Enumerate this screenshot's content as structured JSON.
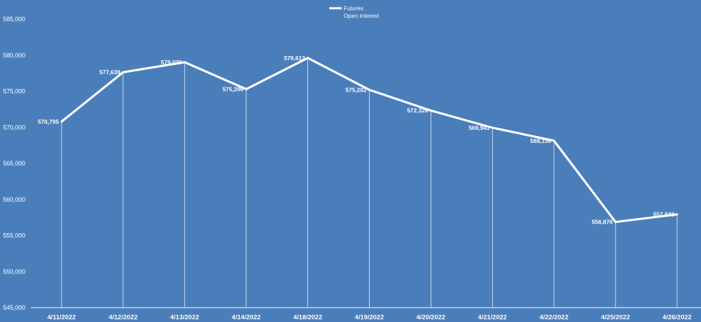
{
  "chart_data": {
    "type": "line",
    "categories": [
      "4/11/2022",
      "4/12/2022",
      "4/13/2022",
      "4/14/2022",
      "4/18/2022",
      "4/19/2022",
      "4/20/2022",
      "4/21/2022",
      "4/22/2022",
      "4/25/2022",
      "4/26/2022"
    ],
    "series": [
      {
        "name": "Futures Open Interest",
        "values": [
          570795,
          577639,
          579030,
          575296,
          579612,
          575202,
          572326,
          569941,
          568150,
          556876,
          557932
        ],
        "labels": [
          "570,795",
          "577,639",
          "579,030",
          "575,296",
          "579,612",
          "575,202",
          "572,326",
          "569,941",
          "568,150",
          "556,876",
          "557,932"
        ]
      }
    ],
    "legend": {
      "line1": "Futures",
      "line2": "Open Interest",
      "position": "top-center"
    },
    "ylim": [
      545000,
      585000
    ],
    "yticks": [
      545000,
      550000,
      555000,
      560000,
      565000,
      570000,
      575000,
      580000,
      585000
    ],
    "ytick_labels": [
      "545,000",
      "550,000",
      "555,000",
      "560,000",
      "565,000",
      "570,000",
      "575,000",
      "580,000",
      "585,000"
    ],
    "drop_lines": true,
    "colors": {
      "background": "#4a7ebb",
      "line": "#ffffff",
      "text": "#ffffff"
    }
  }
}
